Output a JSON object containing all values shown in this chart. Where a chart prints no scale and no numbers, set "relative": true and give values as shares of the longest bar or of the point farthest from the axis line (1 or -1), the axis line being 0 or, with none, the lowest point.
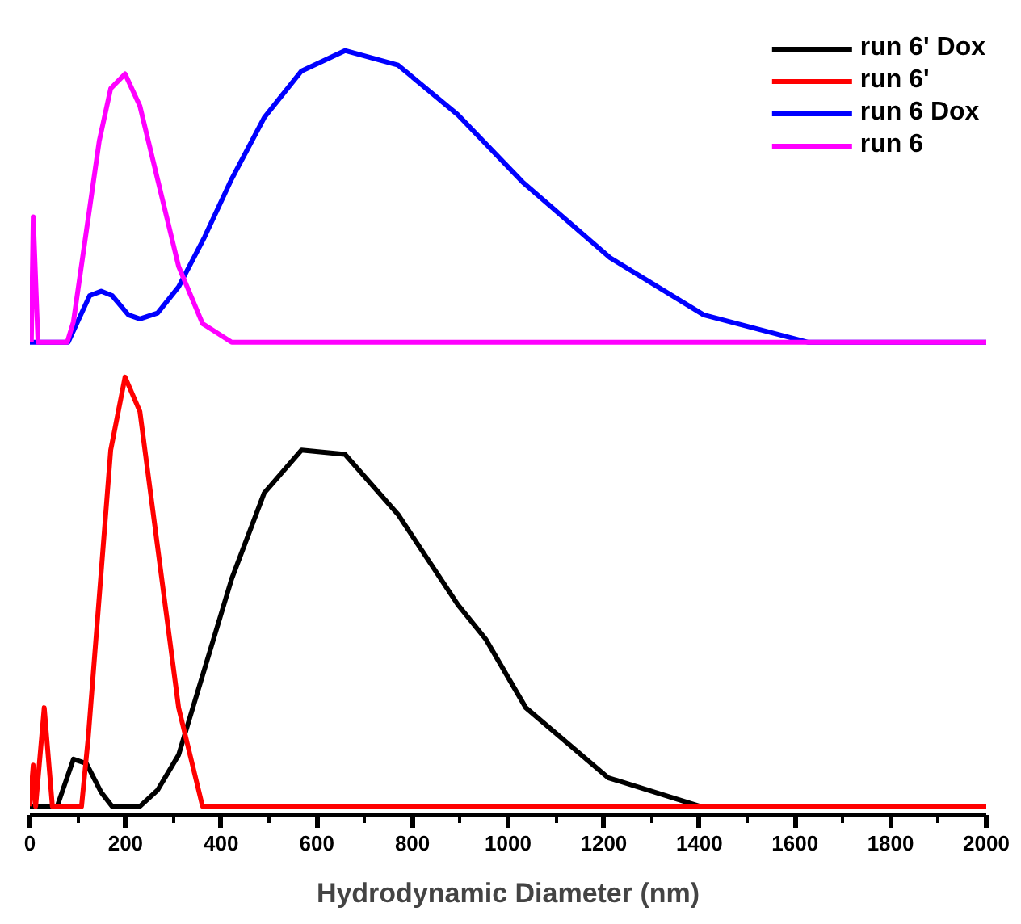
{
  "chart_data": [
    {
      "type": "line",
      "relative": true,
      "tick_labels": false,
      "xlim": [
        0,
        2000
      ],
      "legend": "top right",
      "line_style": "solid",
      "series": [
        {
          "name": "run 6 Dox",
          "color": "#0000ff",
          "x": [
            0,
            80,
            125,
            149,
            172,
            206,
            230,
            267,
            311,
            365,
            422,
            490,
            568,
            659,
            770,
            895,
            1030,
            1213,
            1409,
            1628,
            2000
          ],
          "values": [
            0,
            0,
            0.16,
            0.175,
            0.16,
            0.094,
            0.08,
            0.1,
            0.19,
            0.36,
            0.56,
            0.77,
            0.93,
            1.0,
            0.95,
            0.78,
            0.55,
            0.29,
            0.094,
            0,
            0
          ]
        },
        {
          "name": "run 6",
          "color": "#ff00ff",
          "x": [
            3,
            7,
            17,
            78,
            91,
            145,
            169,
            199,
            230,
            311,
            361,
            422,
            2000
          ],
          "values": [
            0,
            0.43,
            0,
            0,
            0.07,
            0.69,
            0.87,
            0.92,
            0.81,
            0.26,
            0.064,
            0,
            0
          ]
        }
      ]
    },
    {
      "type": "line",
      "relative": true,
      "tick_labels": "x",
      "xlim": [
        0,
        2000
      ],
      "line_style": "solid",
      "xticks": [
        0,
        {
          "value": 100,
          "label": null
        },
        200,
        {
          "value": 300,
          "label": null
        },
        400,
        {
          "value": 500,
          "label": null
        },
        600,
        {
          "value": 700,
          "label": null
        },
        800,
        {
          "value": 900,
          "label": null
        },
        1000,
        {
          "value": 1100,
          "label": null
        },
        1200,
        {
          "value": 1300,
          "label": null
        },
        1400,
        {
          "value": 1500,
          "label": null
        },
        1600,
        {
          "value": 1700,
          "label": null
        },
        1800,
        {
          "value": 1900,
          "label": null
        },
        2000
      ],
      "xlabel": "Hydrodynamic Diameter (nm)",
      "series": [
        {
          "name": "run 6' Dox",
          "color": "#000000",
          "x": [
            0,
            57,
            91,
            118,
            149,
            172,
            230,
            267,
            311,
            422,
            490,
            568,
            659,
            770,
            895,
            953,
            1037,
            1209,
            1402
          ],
          "values": [
            0,
            0,
            0.11,
            0.1,
            0.033,
            0,
            0,
            0.038,
            0.12,
            0.53,
            0.73,
            0.83,
            0.82,
            0.68,
            0.47,
            0.39,
            0.23,
            0.067,
            0
          ]
        },
        {
          "name": "run 6'",
          "color": "#ff0000",
          "x": [
            0,
            7,
            12,
            30,
            47,
            108,
            122,
            169,
            199,
            230,
            311,
            361,
            2000
          ],
          "values": [
            0,
            0.096,
            0,
            0.23,
            0,
            0,
            0.16,
            0.83,
            1.0,
            0.92,
            0.23,
            0,
            0
          ]
        }
      ]
    }
  ]
}
